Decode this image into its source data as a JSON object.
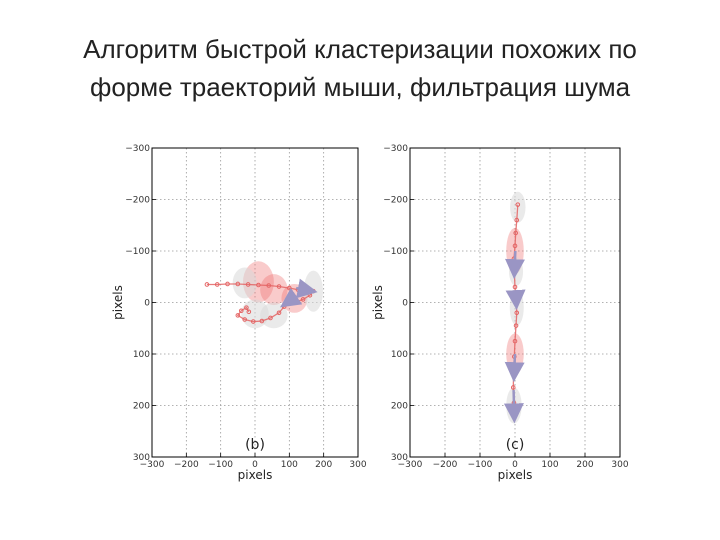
{
  "title": {
    "line1": "Алгоритм быстрой кластеризации похожих по",
    "line2": "форме траекторий мыши, фильтрация шума"
  },
  "colors": {
    "trajectory": "#e46464",
    "cluster_fill": "#d9d9d9",
    "cluster_red": "#ef6b6b",
    "arrow": "#9a95c4",
    "grid": "#999999"
  },
  "chart_data": [
    {
      "type": "scatter",
      "panel_label": "(b)",
      "xlabel": "pixels",
      "ylabel": "pixels",
      "xlim": [
        -300,
        300
      ],
      "ylim": [
        -300,
        300
      ],
      "y_inverted": true,
      "grid": true,
      "x_ticks": [
        "−300",
        "−200",
        "−100",
        "0",
        "100",
        "200",
        "300"
      ],
      "y_ticks": [
        "−300",
        "−200",
        "−100",
        "0",
        "100",
        "200",
        "300"
      ],
      "tick_values": [
        -300,
        -200,
        -100,
        0,
        100,
        200,
        300
      ],
      "series": [
        {
          "points": [
            [
              -140,
              -35
            ],
            [
              -110,
              -35
            ],
            [
              -80,
              -36
            ],
            [
              -50,
              -36
            ],
            [
              -20,
              -35
            ],
            [
              10,
              -34
            ],
            [
              40,
              -33
            ],
            [
              70,
              -31
            ],
            [
              100,
              -28
            ],
            [
              125,
              -25
            ],
            [
              145,
              -22
            ],
            [
              160,
              -20
            ],
            [
              170,
              -22
            ],
            [
              160,
              -14
            ],
            [
              140,
              -6
            ],
            [
              115,
              0
            ],
            [
              95,
              2
            ],
            [
              85,
              8
            ],
            [
              70,
              20
            ],
            [
              45,
              30
            ],
            [
              20,
              36
            ],
            [
              -5,
              37
            ],
            [
              -30,
              33
            ],
            [
              -50,
              25
            ],
            [
              -40,
              16
            ],
            [
              -25,
              10
            ],
            [
              -18,
              18
            ]
          ]
        }
      ],
      "clusters": [
        {
          "x": 10,
          "y": -40,
          "rx": 45,
          "ry": 40,
          "tint": "red"
        },
        {
          "x": -30,
          "y": -38,
          "rx": 35,
          "ry": 30,
          "tint": "gray"
        },
        {
          "x": 55,
          "y": -25,
          "rx": 40,
          "ry": 30,
          "tint": "red"
        },
        {
          "x": 115,
          "y": -8,
          "rx": 38,
          "ry": 28,
          "tint": "red"
        },
        {
          "x": 170,
          "y": -22,
          "rx": 28,
          "ry": 40,
          "tint": "gray"
        },
        {
          "x": 0,
          "y": 22,
          "rx": 40,
          "ry": 28,
          "tint": "gray"
        },
        {
          "x": 55,
          "y": 25,
          "rx": 40,
          "ry": 25,
          "tint": "gray"
        }
      ],
      "arrows": [
        {
          "x1": 120,
          "y1": -28,
          "x2": 168,
          "y2": -22
        },
        {
          "x1": 120,
          "y1": -12,
          "x2": 85,
          "y2": 4
        }
      ]
    },
    {
      "type": "scatter",
      "panel_label": "(c)",
      "xlabel": "pixels",
      "ylabel": "pixels",
      "xlim": [
        -300,
        300
      ],
      "ylim": [
        -300,
        300
      ],
      "y_inverted": true,
      "grid": true,
      "x_ticks": [
        "−300",
        "−200",
        "−100",
        "0",
        "100",
        "200",
        "300"
      ],
      "y_ticks": [
        "−300",
        "−200",
        "−100",
        "0",
        "100",
        "200",
        "300"
      ],
      "tick_values": [
        -300,
        -200,
        -100,
        0,
        100,
        200,
        300
      ],
      "series": [
        {
          "points": [
            [
              8,
              -190
            ],
            [
              5,
              -160
            ],
            [
              2,
              -135
            ],
            [
              0,
              -110
            ],
            [
              -3,
              -85
            ],
            [
              -2,
              -60
            ],
            [
              0,
              -30
            ],
            [
              3,
              -5
            ],
            [
              5,
              20
            ],
            [
              3,
              45
            ],
            [
              0,
              75
            ],
            [
              -2,
              105
            ],
            [
              -4,
              135
            ],
            [
              -5,
              165
            ],
            [
              -3,
              195
            ],
            [
              -1,
              215
            ]
          ]
        }
      ],
      "clusters": [
        {
          "x": 8,
          "y": -185,
          "rx": 22,
          "ry": 30,
          "tint": "gray"
        },
        {
          "x": 0,
          "y": -100,
          "rx": 25,
          "ry": 45,
          "tint": "red"
        },
        {
          "x": 3,
          "y": -60,
          "rx": 20,
          "ry": 28,
          "tint": "gray"
        },
        {
          "x": 5,
          "y": 10,
          "rx": 20,
          "ry": 35,
          "tint": "gray"
        },
        {
          "x": 0,
          "y": 100,
          "rx": 25,
          "ry": 40,
          "tint": "red"
        },
        {
          "x": -3,
          "y": 200,
          "rx": 22,
          "ry": 35,
          "tint": "gray"
        }
      ],
      "arrows": [
        {
          "x1": 1,
          "y1": -100,
          "x2": -2,
          "y2": -55
        },
        {
          "x1": 2,
          "y1": -20,
          "x2": 4,
          "y2": 5
        },
        {
          "x1": 0,
          "y1": 100,
          "x2": -3,
          "y2": 145
        },
        {
          "x1": -4,
          "y1": 170,
          "x2": -2,
          "y2": 225
        }
      ]
    }
  ]
}
